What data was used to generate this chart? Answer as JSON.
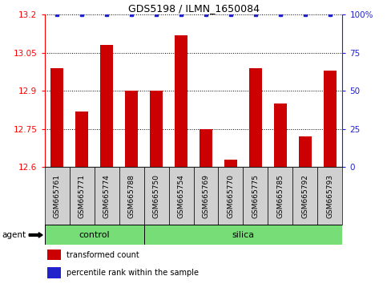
{
  "title": "GDS5198 / ILMN_1650084",
  "samples": [
    "GSM665761",
    "GSM665771",
    "GSM665774",
    "GSM665788",
    "GSM665750",
    "GSM665754",
    "GSM665769",
    "GSM665770",
    "GSM665775",
    "GSM665785",
    "GSM665792",
    "GSM665793"
  ],
  "values": [
    12.99,
    12.82,
    13.08,
    12.9,
    12.9,
    13.12,
    12.75,
    12.63,
    12.99,
    12.85,
    12.72,
    12.98
  ],
  "percentile_ranks": [
    100,
    100,
    100,
    100,
    100,
    100,
    100,
    100,
    100,
    100,
    100,
    100
  ],
  "bar_color": "#cc0000",
  "dot_color": "#2222cc",
  "ylim_left": [
    12.6,
    13.2
  ],
  "ylim_right": [
    0,
    100
  ],
  "yticks_left": [
    12.6,
    12.75,
    12.9,
    13.05,
    13.2
  ],
  "yticks_right": [
    0,
    25,
    50,
    75,
    100
  ],
  "control_count": 4,
  "silica_count": 8,
  "group_color": "#77dd77",
  "tickbox_color": "#d0d0d0",
  "agent_label": "agent",
  "legend_bar_label": "transformed count",
  "legend_dot_label": "percentile rank within the sample",
  "bar_width": 0.5
}
